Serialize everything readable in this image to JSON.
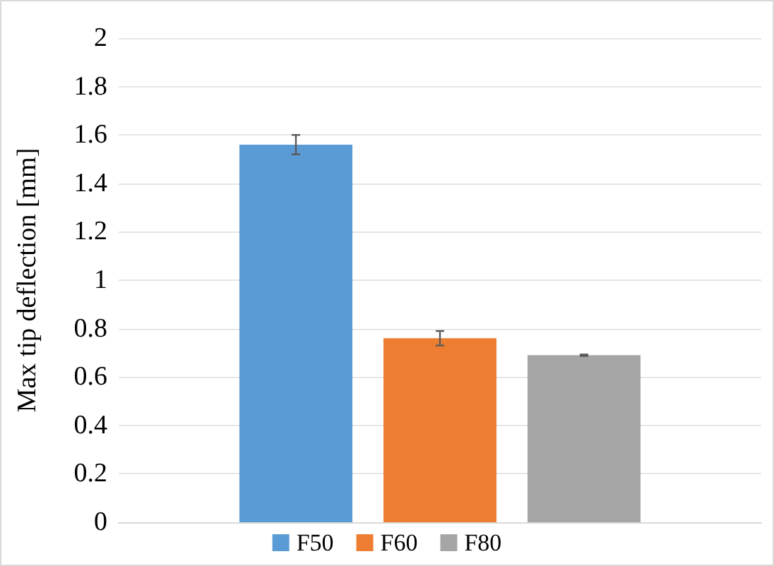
{
  "chart_data": {
    "type": "bar",
    "ylabel": "Max tip deflection [mm]",
    "categories": [
      null
    ],
    "series": [
      {
        "name": "F50",
        "color": "#5b9bd5",
        "values": [
          1.56
        ],
        "errors": [
          0.04
        ]
      },
      {
        "name": "F60",
        "color": "#ed7d31",
        "values": [
          0.76
        ],
        "errors": [
          0.03
        ]
      },
      {
        "name": "F80",
        "color": "#a5a5a5",
        "values": [
          0.69
        ],
        "errors": [
          0.003
        ]
      }
    ],
    "ylim": [
      0,
      2
    ],
    "yticks": [
      0,
      0.2,
      0.4,
      0.6,
      0.8,
      1,
      1.2,
      1.4,
      1.6,
      1.8,
      2
    ],
    "grid": "y",
    "legend": "bottom"
  }
}
